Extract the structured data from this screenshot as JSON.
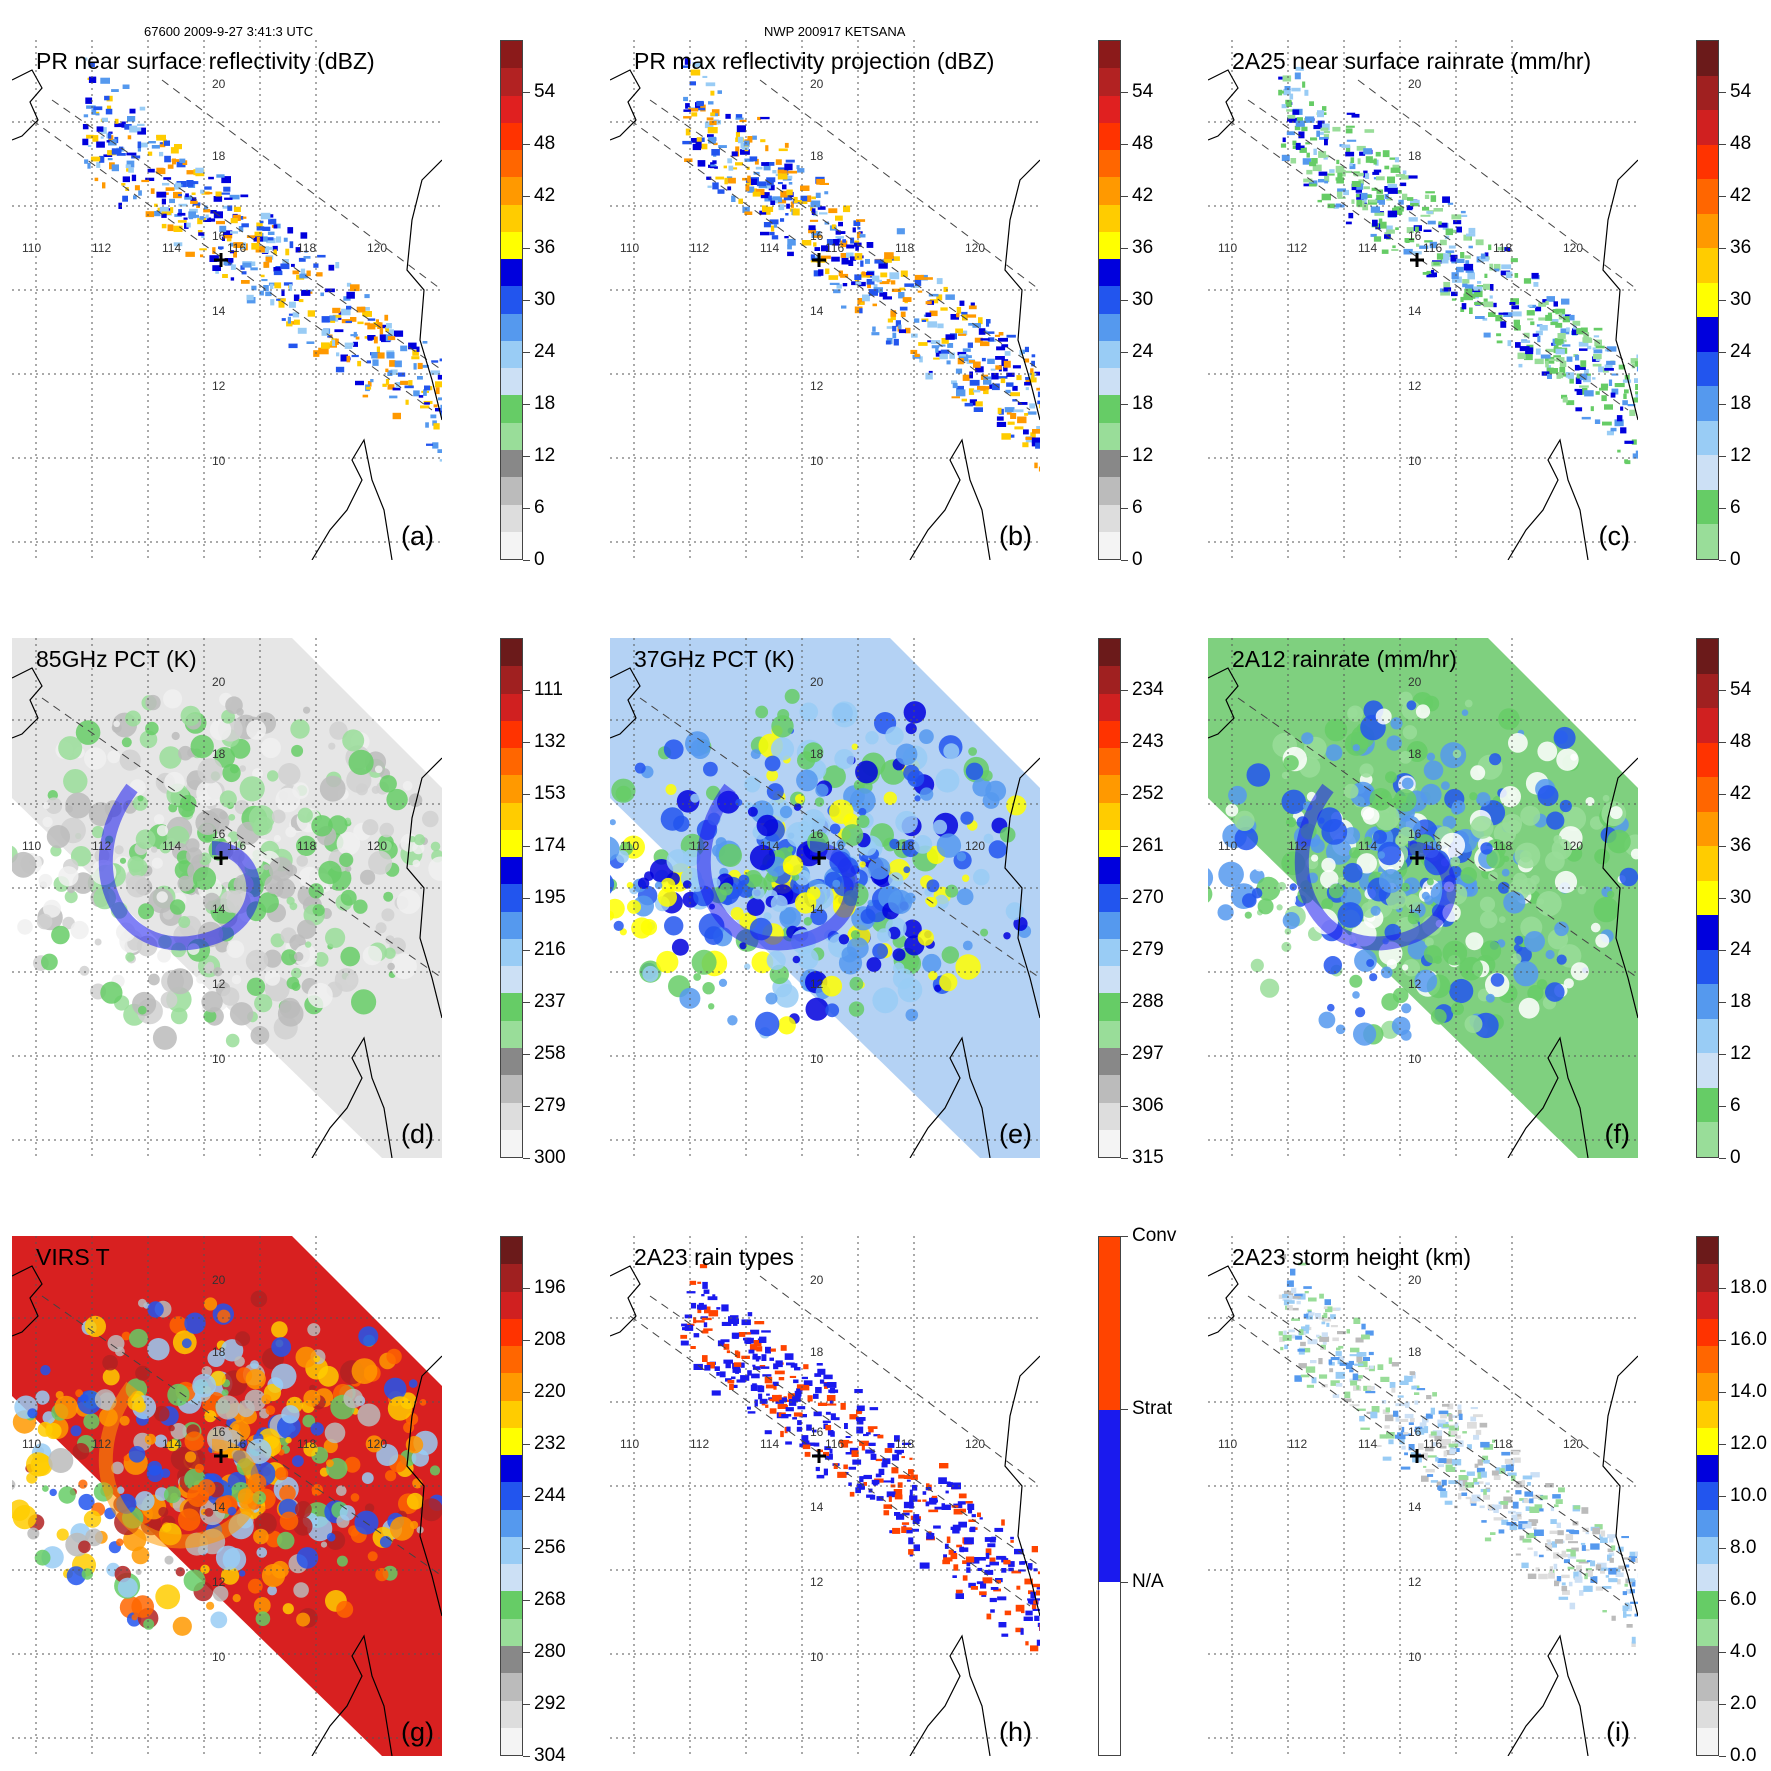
{
  "header": {
    "left": "67600 2009-9-27 3:41:3 UTC",
    "center": "NWP 200917 KETSANA"
  },
  "colors": {
    "grid": "#555555",
    "coast": "#000000",
    "swath_edge": "#444444"
  },
  "axes": {
    "lon_labels": [
      "110",
      "112",
      "114",
      "116",
      "118",
      "120"
    ],
    "lat_labels": [
      "20",
      "18",
      "16",
      "14",
      "12",
      "10"
    ]
  },
  "panels": [
    {
      "id": "a",
      "title": "PR near surface reflectivity (dBZ)",
      "label": "(a)",
      "fill": "pr",
      "cbar": {
        "colors": [
          "#8b1a1a",
          "#b22222",
          "#e02020",
          "#ff3300",
          "#ff6600",
          "#ff9900",
          "#ffcc00",
          "#ffff00",
          "#0000dd",
          "#2255ee",
          "#5599ee",
          "#99ccf5",
          "#cce0f5",
          "#66cc66",
          "#99dd99",
          "#888888",
          "#bbbbbb",
          "#dddddd",
          "#f4f4f4"
        ],
        "ticks": [
          "54",
          "48",
          "42",
          "36",
          "30",
          "24",
          "18",
          "12",
          "6",
          "0"
        ]
      }
    },
    {
      "id": "b",
      "title": "PR max reflectivity projection (dBZ)",
      "label": "(b)",
      "fill": "pr",
      "cbar": {
        "colors": [
          "#8b1a1a",
          "#b22222",
          "#e02020",
          "#ff3300",
          "#ff6600",
          "#ff9900",
          "#ffcc00",
          "#ffff00",
          "#0000dd",
          "#2255ee",
          "#5599ee",
          "#99ccf5",
          "#cce0f5",
          "#66cc66",
          "#99dd99",
          "#888888",
          "#bbbbbb",
          "#dddddd",
          "#f4f4f4"
        ],
        "ticks": [
          "54",
          "48",
          "42",
          "36",
          "30",
          "24",
          "18",
          "12",
          "6",
          "0"
        ]
      }
    },
    {
      "id": "c",
      "title": "2A25 near surface rainrate (mm/hr)",
      "label": "(c)",
      "fill": "rain",
      "cbar": {
        "colors": [
          "#6b1a1a",
          "#a02020",
          "#d02020",
          "#ff3300",
          "#ff6600",
          "#ff9900",
          "#ffcc00",
          "#ffff00",
          "#0000dd",
          "#2255ee",
          "#5599ee",
          "#99ccf5",
          "#cce0f5",
          "#66cc66",
          "#99dd99"
        ],
        "ticks": [
          "54",
          "48",
          "42",
          "36",
          "30",
          "24",
          "18",
          "12",
          "6",
          "0"
        ]
      }
    },
    {
      "id": "d",
      "title": "85GHz PCT (K)",
      "label": "(d)",
      "fill": "pct85",
      "cbar": {
        "colors": [
          "#6b1a1a",
          "#a02020",
          "#d02020",
          "#ff3300",
          "#ff6600",
          "#ff9900",
          "#ffcc00",
          "#ffff00",
          "#0000dd",
          "#2255ee",
          "#5599ee",
          "#99ccf5",
          "#cce0f5",
          "#66cc66",
          "#99dd99",
          "#888888",
          "#bbbbbb",
          "#dddddd",
          "#f4f4f4"
        ],
        "ticks": [
          "111",
          "132",
          "153",
          "174",
          "195",
          "216",
          "237",
          "258",
          "279",
          "300"
        ]
      }
    },
    {
      "id": "e",
      "title": "37GHz PCT (K)",
      "label": "(e)",
      "fill": "pct37",
      "cbar": {
        "colors": [
          "#6b1a1a",
          "#a02020",
          "#d02020",
          "#ff3300",
          "#ff6600",
          "#ff9900",
          "#ffcc00",
          "#ffff00",
          "#0000dd",
          "#2255ee",
          "#5599ee",
          "#99ccf5",
          "#cce0f5",
          "#66cc66",
          "#99dd99",
          "#888888",
          "#bbbbbb",
          "#dddddd",
          "#f4f4f4"
        ],
        "ticks": [
          "234",
          "243",
          "252",
          "261",
          "270",
          "279",
          "288",
          "297",
          "306",
          "315"
        ]
      }
    },
    {
      "id": "f",
      "title": "2A12 rainrate (mm/hr)",
      "label": "(f)",
      "fill": "rain12",
      "cbar": {
        "colors": [
          "#6b1a1a",
          "#a02020",
          "#d02020",
          "#ff3300",
          "#ff6600",
          "#ff9900",
          "#ffcc00",
          "#ffff00",
          "#0000dd",
          "#2255ee",
          "#5599ee",
          "#99ccf5",
          "#cce0f5",
          "#66cc66",
          "#99dd99"
        ],
        "ticks": [
          "54",
          "48",
          "42",
          "36",
          "30",
          "24",
          "18",
          "12",
          "6",
          "0"
        ]
      }
    },
    {
      "id": "g",
      "title": "VIRS T",
      "label": "(g)",
      "fill": "virs",
      "cbar": {
        "colors": [
          "#6b1a1a",
          "#a02020",
          "#d02020",
          "#ff3300",
          "#ff6600",
          "#ff9900",
          "#ffcc00",
          "#ffff00",
          "#0000dd",
          "#2255ee",
          "#5599ee",
          "#99ccf5",
          "#cce0f5",
          "#66cc66",
          "#99dd99",
          "#888888",
          "#bbbbbb",
          "#dddddd",
          "#f4f4f4"
        ],
        "ticks": [
          "196",
          "208",
          "220",
          "232",
          "244",
          "256",
          "268",
          "280",
          "292",
          "304"
        ]
      }
    },
    {
      "id": "h",
      "title": "2A23 rain types",
      "label": "(h)",
      "fill": "types",
      "cbar": {
        "colors": [
          "#ff4400",
          "#ff4400",
          "#ff4400",
          "#ff4400",
          "#1a1aee",
          "#1a1aee",
          "#1a1aee",
          "#1a1aee",
          "#ffffff",
          "#ffffff",
          "#ffffff",
          "#ffffff"
        ],
        "ticks": [
          "Conv",
          "Strat",
          "N/A"
        ]
      }
    },
    {
      "id": "i",
      "title": "2A23 storm height (km)",
      "label": "(i)",
      "fill": "height",
      "cbar": {
        "colors": [
          "#6b1a1a",
          "#a02020",
          "#d02020",
          "#ff3300",
          "#ff6600",
          "#ff9900",
          "#ffcc00",
          "#ffff00",
          "#0000dd",
          "#2255ee",
          "#5599ee",
          "#99ccf5",
          "#cce0f5",
          "#66cc66",
          "#99dd99",
          "#888888",
          "#bbbbbb",
          "#dddddd",
          "#f4f4f4"
        ],
        "ticks": [
          "18.0",
          "16.0",
          "14.0",
          "12.0",
          "10.0",
          "8.0",
          "6.0",
          "4.0",
          "2.0",
          "0.0"
        ]
      }
    }
  ]
}
